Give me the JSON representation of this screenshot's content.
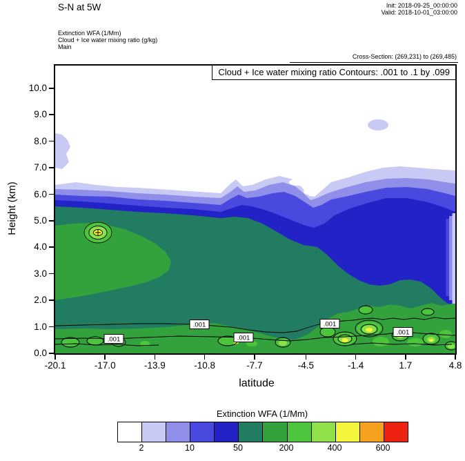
{
  "header": {
    "title": "S-N at 5W",
    "init": "Init: 2018-09-25_00:00:00",
    "valid": "Valid: 2018-10-01_03:00:00",
    "field_line1": "Extinction WFA  (1/Mm)",
    "field_line2": "Cloud + Ice water mixing ratio   (g/kg)",
    "field_line3": "Main",
    "cross_section": "Cross-Section: (269,231) to (269,485)"
  },
  "plot": {
    "contour_note": "Cloud + Ice water mixing ratio Contours: .001 to .1 by .099",
    "xlabel": "latitude",
    "ylabel": "Height (km)",
    "x_ticks": [
      "-20.1",
      "-17.0",
      "-13.9",
      "-10.8",
      "-7.7",
      "-4.5",
      "-1.4",
      "1.7",
      "4.8"
    ],
    "y_ticks": [
      "0.0",
      "1.0",
      "2.0",
      "3.0",
      "4.0",
      "5.0",
      "6.0",
      "7.0",
      "8.0",
      "9.0",
      "10.0"
    ],
    "contour_labels": [
      ".001",
      ".001",
      ".001",
      ".001",
      ".001"
    ]
  },
  "colorbar": {
    "title": "Extinction WFA  (1/Mm)",
    "tick_labels": [
      "2",
      "10",
      "50",
      "200",
      "400",
      "600"
    ],
    "label_boundaries": [
      1,
      3,
      5,
      7,
      9,
      11
    ],
    "colors": [
      "#ffffff",
      "#c9c9f6",
      "#8f8fe9",
      "#4949e0",
      "#2222c6",
      "#217c62",
      "#33a23c",
      "#4cc53d",
      "#8fe04a",
      "#f4f43b",
      "#f5a01f",
      "#ee2211"
    ]
  },
  "chart_data": {
    "type": "heatmap",
    "title": "Cloud + Ice water mixing ratio Contours: .001 to .1 by .099",
    "subtitle": "S-N at 5W",
    "xlabel": "latitude",
    "ylabel": "Height (km)",
    "xlim": [
      -20.1,
      4.8
    ],
    "ylim": [
      0,
      10.9
    ],
    "x_ticks": [
      -20.1,
      -17.0,
      -13.9,
      -10.8,
      -7.7,
      -4.5,
      -1.4,
      1.7,
      4.8
    ],
    "y_ticks": [
      0,
      1,
      2,
      3,
      4,
      5,
      6,
      7,
      8,
      9,
      10
    ],
    "grid": false,
    "fill_variable": "Extinction WFA (1/Mm)",
    "fill_levels": [
      2,
      5,
      10,
      20,
      50,
      100,
      200,
      300,
      400,
      500,
      600
    ],
    "fill_colors": [
      "#ffffff",
      "#c9c9f6",
      "#8f8fe9",
      "#4949e0",
      "#2222c6",
      "#217c62",
      "#33a23c",
      "#4cc53d",
      "#8fe04a",
      "#f4f43b",
      "#f5a01f",
      "#ee2211"
    ],
    "legend_position": "bottom colorbar",
    "overlay_contour_variable": "Cloud + Ice water mixing ratio (g/kg)",
    "overlay_contour_levels": [
      0.001,
      0.1
    ],
    "features": {
      "aerosol_layer_top_height_km": {
        "latitude": [
          -20.1,
          -17.0,
          -13.9,
          -10.8,
          -7.7,
          -4.5,
          -1.4,
          1.7,
          4.8
        ],
        "height_km": [
          6.4,
          6.3,
          6.1,
          6.0,
          6.6,
          6.8,
          7.0,
          7.0,
          6.9
        ]
      },
      "extinction_maximum": {
        "latitude": -17.4,
        "height_km": 4.6,
        "value_1_per_Mm": "400-500"
      },
      "main_plume_value_1_per_Mm": "50-100 (dark teal core from 0-5 km across section)",
      "cloud_water_contour_labels": [
        {
          "label": ".001",
          "latitude": -16.4,
          "height_km": 0.55
        },
        {
          "label": ".001",
          "latitude": -11.1,
          "height_km": 1.1
        },
        {
          "label": ".001",
          "latitude": -8.4,
          "height_km": 0.6
        },
        {
          "label": ".001",
          "latitude": -3.0,
          "height_km": 1.1
        },
        {
          "label": ".001",
          "latitude": 1.5,
          "height_km": 0.8
        }
      ],
      "detached_thin_layers": [
        {
          "latitude": -20.0,
          "height_km": 7.8,
          "value_1_per_Mm": "2-5"
        },
        {
          "latitude": -0.6,
          "height_km": 8.6,
          "value_1_per_Mm": "2-5"
        }
      ]
    }
  }
}
